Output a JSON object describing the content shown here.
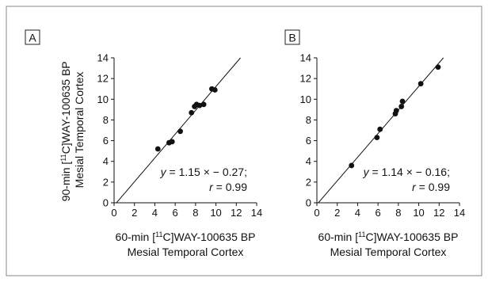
{
  "chart_data": [
    {
      "type": "scatter",
      "panel_label": "A",
      "ylabel_lines": [
        "90-min [",
        "11",
        "C]WAY-100635 BP",
        "Mesial Temporal Cortex"
      ],
      "xlabel_lines": [
        "60-min [",
        "11",
        "C]WAY-100635 BP",
        "Mesial Temporal Cortex"
      ],
      "xlim": [
        0,
        14
      ],
      "ylim": [
        0,
        14
      ],
      "xticks": [
        0,
        2,
        4,
        6,
        8,
        10,
        12,
        14
      ],
      "yticks": [
        0,
        2,
        4,
        6,
        8,
        10,
        12,
        14
      ],
      "x": [
        4.3,
        5.4,
        5.7,
        6.5,
        7.6,
        7.9,
        8.1,
        8.4,
        8.8,
        9.6,
        9.9
      ],
      "y": [
        5.2,
        5.8,
        5.9,
        6.9,
        8.7,
        9.3,
        9.5,
        9.4,
        9.5,
        11.0,
        10.9
      ],
      "fit": {
        "slope": 1.15,
        "intercept": -0.27
      },
      "equation": {
        "y_symbol": "y",
        "equation_text": " = 1.15 × − 0.27;",
        "r_symbol": "r",
        "r_text": " = 0.99"
      }
    },
    {
      "type": "scatter",
      "panel_label": "B",
      "xlabel_lines": [
        "60-min [",
        "11",
        "C]WAY-100635 BP",
        "Mesial Temporal Cortex"
      ],
      "xlim": [
        0,
        14
      ],
      "ylim": [
        0,
        14
      ],
      "xticks": [
        0,
        2,
        4,
        6,
        8,
        10,
        12,
        14
      ],
      "yticks": [
        0,
        2,
        4,
        6,
        8,
        10,
        12,
        14
      ],
      "x": [
        3.4,
        5.9,
        6.2,
        7.7,
        7.8,
        8.3,
        8.4,
        10.2,
        11.9
      ],
      "y": [
        3.6,
        6.3,
        7.1,
        8.6,
        8.9,
        9.3,
        9.8,
        11.5,
        13.1
      ],
      "fit": {
        "slope": 1.14,
        "intercept": -0.16
      },
      "equation": {
        "y_symbol": "y",
        "equation_text": " = 1.14 × − 0.16;",
        "r_symbol": "r",
        "r_text": " = 0.99"
      }
    }
  ]
}
